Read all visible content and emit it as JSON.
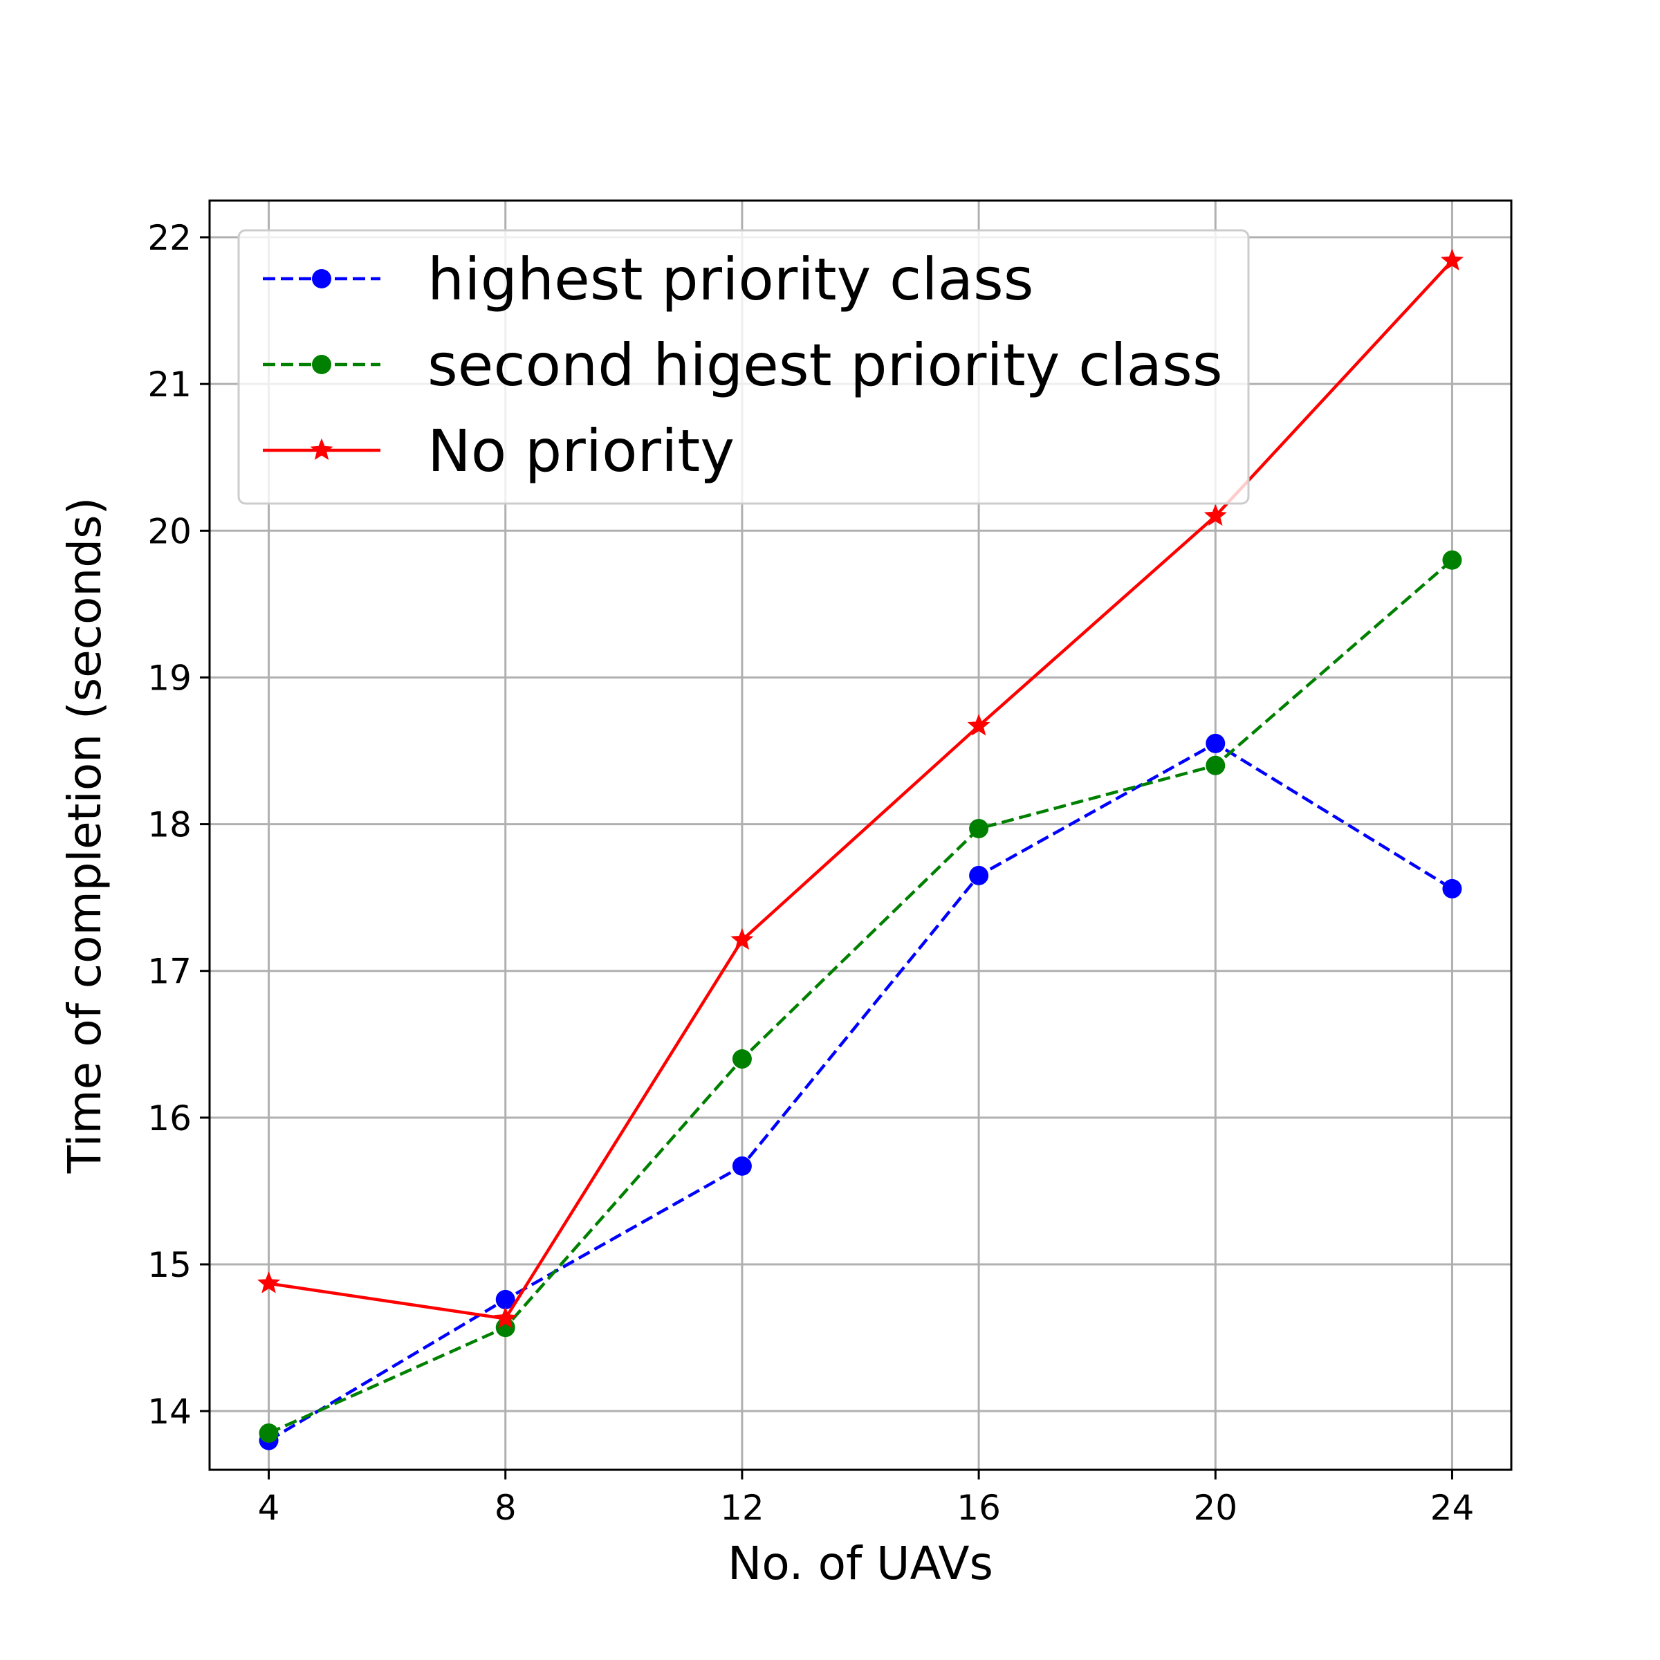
{
  "chart_data": {
    "type": "line",
    "title": "",
    "xlabel": "No. of UAVs",
    "ylabel": "Time of completion (seconds)",
    "xlim": [
      3.0,
      25.0
    ],
    "ylim": [
      13.6,
      22.25
    ],
    "x_ticks": [
      4,
      8,
      12,
      16,
      20,
      24
    ],
    "y_ticks": [
      14,
      15,
      16,
      17,
      18,
      19,
      20,
      21,
      22
    ],
    "grid": true,
    "legend_position": "top-left",
    "x": [
      4,
      8,
      12,
      16,
      20,
      24
    ],
    "series": [
      {
        "name": "highest priority class",
        "values": [
          13.8,
          14.76,
          15.67,
          17.65,
          18.55,
          17.56
        ],
        "color": "#0000ff",
        "line_style": "dashed",
        "marker": "circle"
      },
      {
        "name": "second higest priority class",
        "values": [
          13.85,
          14.57,
          16.4,
          17.97,
          18.4,
          19.8
        ],
        "color": "#008000",
        "line_style": "dashed",
        "marker": "circle"
      },
      {
        "name": "No priority",
        "values": [
          14.87,
          14.63,
          17.21,
          18.67,
          20.1,
          21.84
        ],
        "color": "#ff0000",
        "line_style": "solid",
        "marker": "star"
      }
    ]
  }
}
